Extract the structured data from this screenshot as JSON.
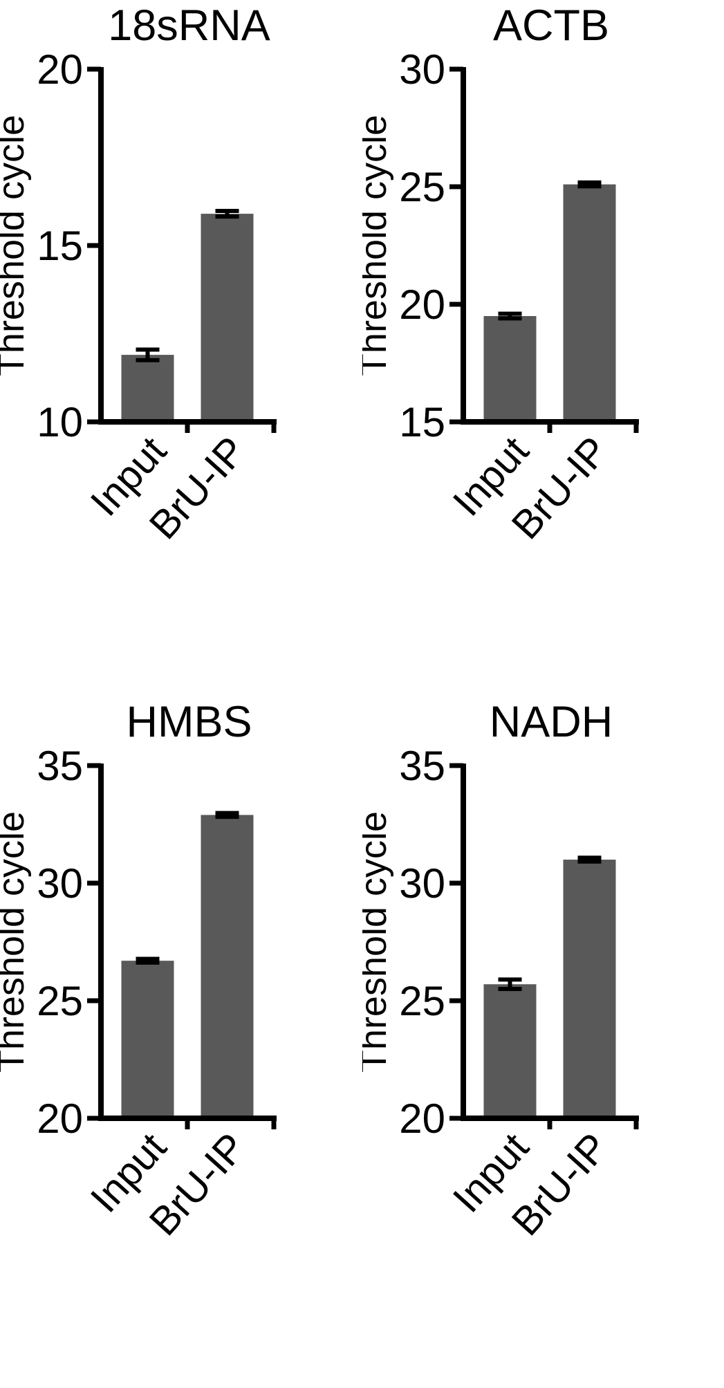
{
  "page": {
    "background": "#ffffff"
  },
  "style": {
    "bar_color": "#595959",
    "axis_color": "#000000",
    "text_color": "#000000",
    "error_color": "#000000"
  },
  "chart_data": [
    {
      "type": "bar",
      "title": "18sRNA",
      "ylabel": "Threshold cycle",
      "categories": [
        "Input",
        "BrU-IP"
      ],
      "values": [
        11.9,
        15.9
      ],
      "errors": [
        0.15,
        0.08
      ],
      "ylim": [
        10,
        20
      ],
      "yticks": [
        10,
        15,
        20
      ],
      "grid": false,
      "legend": "none"
    },
    {
      "type": "bar",
      "title": "ACTB",
      "ylabel": "Threshold cycle",
      "categories": [
        "Input",
        "BrU-IP"
      ],
      "values": [
        19.5,
        25.1
      ],
      "errors": [
        0.1,
        0.08
      ],
      "ylim": [
        15,
        30
      ],
      "yticks": [
        15,
        20,
        25,
        30
      ],
      "grid": false,
      "legend": "none"
    },
    {
      "type": "bar",
      "title": "HMBS",
      "ylabel": "Threshold cycle",
      "categories": [
        "Input",
        "BrU-IP"
      ],
      "values": [
        26.7,
        32.9
      ],
      "errors": [
        0.08,
        0.08
      ],
      "ylim": [
        20,
        35
      ],
      "yticks": [
        20,
        25,
        30,
        35
      ],
      "grid": false,
      "legend": "none"
    },
    {
      "type": "bar",
      "title": "NADH",
      "ylabel": "Threshold cycle",
      "categories": [
        "Input",
        "BrU-IP"
      ],
      "values": [
        25.7,
        31.0
      ],
      "errors": [
        0.2,
        0.08
      ],
      "ylim": [
        20,
        35
      ],
      "yticks": [
        20,
        25,
        30,
        35
      ],
      "grid": false,
      "legend": "none"
    }
  ]
}
